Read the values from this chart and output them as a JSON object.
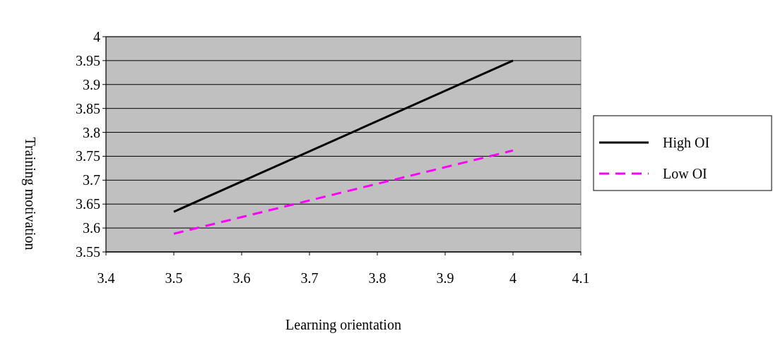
{
  "chart_data": {
    "type": "line",
    "xlabel": "Learning orientation",
    "ylabel": "Training motivation",
    "x": [
      3.5,
      4
    ],
    "series": [
      {
        "name": "High OI",
        "color": "#000000",
        "values": [
          3.634,
          3.95
        ],
        "line_style": "solid"
      },
      {
        "name": "Low OI",
        "color": "#ff00ff",
        "values": [
          3.588,
          3.762
        ],
        "line_style": "dashed"
      }
    ],
    "xlim": [
      3.4,
      4.1
    ],
    "xticks": [
      3.4,
      3.5,
      3.6,
      3.7,
      3.8,
      3.9,
      4,
      4.1
    ],
    "ylim": [
      3.55,
      4
    ],
    "yticks": [
      3.55,
      3.6,
      3.65,
      3.7,
      3.75,
      3.8,
      3.85,
      3.9,
      3.95,
      4
    ],
    "grid": "y",
    "legend": "right",
    "marker": "none"
  }
}
